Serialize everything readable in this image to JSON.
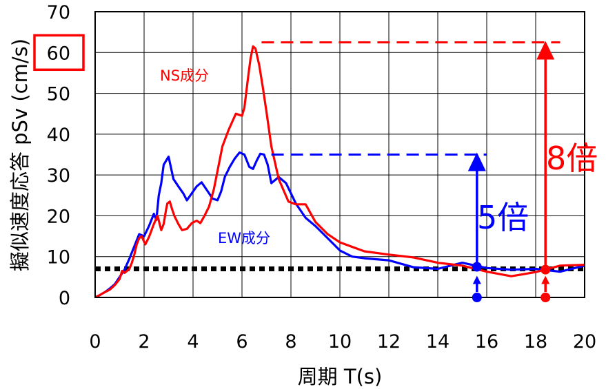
{
  "chart_data": {
    "type": "line",
    "xlabel": "周期 T(s)",
    "ylabel": "擬似速度応答 pSv (cm/s)",
    "xlim": [
      0,
      20
    ],
    "ylim": [
      0,
      70
    ],
    "x_ticks": [
      "0",
      "2",
      "4",
      "6",
      "8",
      "10",
      "12",
      "14",
      "16",
      "18",
      "20"
    ],
    "y_ticks": [
      "0",
      "10",
      "20",
      "30",
      "40",
      "50",
      "60",
      "70"
    ],
    "grid": true,
    "highlighted_tick": "60",
    "reference_level": 7,
    "series": [
      {
        "name": "NS成分",
        "color": "#ff0000",
        "points": [
          [
            0,
            0
          ],
          [
            0.2,
            0.6
          ],
          [
            0.4,
            1.3
          ],
          [
            0.6,
            1.9
          ],
          [
            0.8,
            3
          ],
          [
            1,
            4.5
          ],
          [
            1.1,
            6.5
          ],
          [
            1.2,
            6
          ],
          [
            1.3,
            6.5
          ],
          [
            1.4,
            7
          ],
          [
            1.5,
            8.5
          ],
          [
            1.6,
            10.5
          ],
          [
            1.7,
            13
          ],
          [
            1.8,
            14.5
          ],
          [
            1.9,
            15
          ],
          [
            2.05,
            13
          ],
          [
            2.2,
            14.8
          ],
          [
            2.4,
            18
          ],
          [
            2.55,
            20
          ],
          [
            2.7,
            16.5
          ],
          [
            2.8,
            18
          ],
          [
            2.9,
            21.5
          ],
          [
            2.95,
            23
          ],
          [
            3.05,
            23.5
          ],
          [
            3.15,
            21.5
          ],
          [
            3.25,
            19.8
          ],
          [
            3.4,
            18
          ],
          [
            3.55,
            16.5
          ],
          [
            3.75,
            16.8
          ],
          [
            3.95,
            18.2
          ],
          [
            4.15,
            18.8
          ],
          [
            4.3,
            18.2
          ],
          [
            4.45,
            19.8
          ],
          [
            4.65,
            22.2
          ],
          [
            4.85,
            26.5
          ],
          [
            5.05,
            32.5
          ],
          [
            5.2,
            37
          ],
          [
            5.45,
            41
          ],
          [
            5.75,
            45
          ],
          [
            6.0,
            44.5
          ],
          [
            6.1,
            46.5
          ],
          [
            6.25,
            54
          ],
          [
            6.35,
            58.5
          ],
          [
            6.45,
            61.5
          ],
          [
            6.55,
            61
          ],
          [
            6.7,
            57
          ],
          [
            6.85,
            51.5
          ],
          [
            7.0,
            45.5
          ],
          [
            7.2,
            37
          ],
          [
            7.5,
            29
          ],
          [
            7.9,
            23.5
          ],
          [
            8.2,
            22.8
          ],
          [
            8.6,
            22.8
          ],
          [
            9.0,
            18.5
          ],
          [
            9.5,
            15.5
          ],
          [
            10,
            13.5
          ],
          [
            11,
            11.3
          ],
          [
            12,
            10.5
          ],
          [
            13,
            9.8
          ],
          [
            14,
            8.5
          ],
          [
            15,
            7.8
          ],
          [
            16,
            6.3
          ],
          [
            17,
            5.2
          ],
          [
            18,
            6.2
          ],
          [
            18.5,
            7
          ],
          [
            19,
            7.8
          ],
          [
            20,
            8.0
          ]
        ]
      },
      {
        "name": "EW成分",
        "color": "#0000ff",
        "points": [
          [
            0,
            0
          ],
          [
            0.2,
            0.6
          ],
          [
            0.4,
            1.3
          ],
          [
            0.6,
            2.2
          ],
          [
            0.8,
            3.2
          ],
          [
            1.0,
            5
          ],
          [
            1.2,
            6.8
          ],
          [
            1.4,
            9.5
          ],
          [
            1.6,
            12.5
          ],
          [
            1.8,
            15.5
          ],
          [
            2.0,
            15
          ],
          [
            2.2,
            17.5
          ],
          [
            2.4,
            20.5
          ],
          [
            2.5,
            19
          ],
          [
            2.6,
            25
          ],
          [
            2.7,
            28
          ],
          [
            2.8,
            32.5
          ],
          [
            3.0,
            34.5
          ],
          [
            3.2,
            29
          ],
          [
            3.4,
            27.2
          ],
          [
            3.6,
            25.5
          ],
          [
            3.75,
            23.8
          ],
          [
            3.95,
            25.5
          ],
          [
            4.15,
            27.2
          ],
          [
            4.35,
            28.2
          ],
          [
            4.6,
            26
          ],
          [
            4.8,
            24.2
          ],
          [
            5.0,
            23.8
          ],
          [
            5.15,
            26
          ],
          [
            5.3,
            29.5
          ],
          [
            5.5,
            32
          ],
          [
            5.7,
            34
          ],
          [
            5.9,
            35.5
          ],
          [
            6.1,
            35
          ],
          [
            6.3,
            32
          ],
          [
            6.45,
            31.5
          ],
          [
            6.6,
            33.5
          ],
          [
            6.75,
            35.2
          ],
          [
            6.9,
            35
          ],
          [
            7.05,
            32.5
          ],
          [
            7.2,
            28
          ],
          [
            7.5,
            29.5
          ],
          [
            7.8,
            28
          ],
          [
            8.2,
            23
          ],
          [
            8.6,
            19.5
          ],
          [
            9.0,
            17.5
          ],
          [
            9.5,
            14.5
          ],
          [
            10,
            11.5
          ],
          [
            10.5,
            10
          ],
          [
            11,
            9.6
          ],
          [
            12,
            9.1
          ],
          [
            13,
            7.4
          ],
          [
            14,
            7.0
          ],
          [
            15,
            8.5
          ],
          [
            16,
            7.2
          ],
          [
            17,
            6.8
          ],
          [
            18,
            7.0
          ],
          [
            19,
            6.3
          ],
          [
            20,
            7.8
          ]
        ]
      }
    ],
    "annotations": {
      "ns_label": "NS成分",
      "ew_label": "EW成分",
      "ew_ratio": "5倍",
      "ns_ratio": "8倍",
      "ew_peak_level": 35,
      "ns_peak_level": 62.5,
      "ew_marker_x": 15.6,
      "ns_marker_x": 18.4
    }
  }
}
